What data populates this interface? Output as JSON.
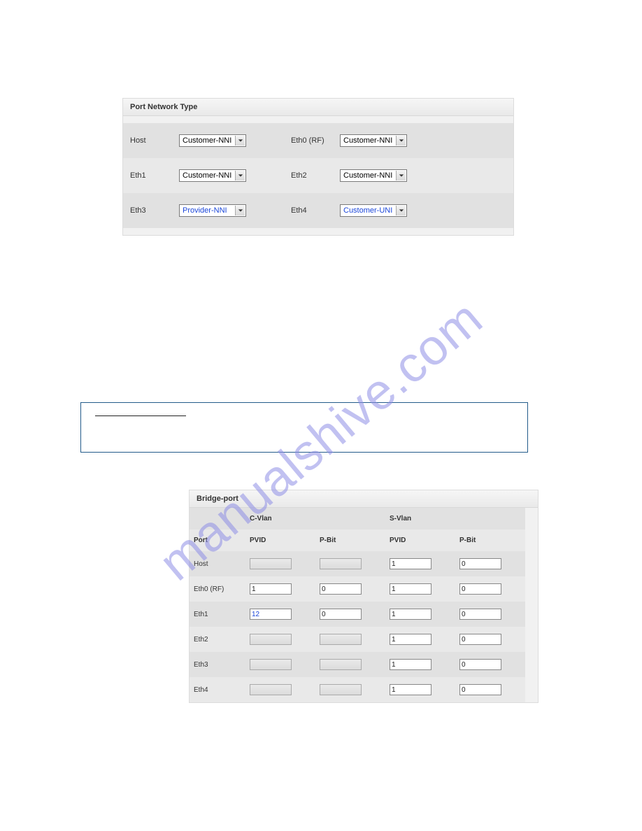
{
  "watermark": {
    "text": "manualshive.com",
    "color": "#8f8fe6"
  },
  "port_network_type": {
    "title": "Port Network Type",
    "rows": [
      {
        "label_a": "Host",
        "value_a": "Customer-NNI",
        "changed_a": false,
        "label_b": "Eth0 (RF)",
        "value_b": "Customer-NNI",
        "changed_b": false
      },
      {
        "label_a": "Eth1",
        "value_a": "Customer-NNI",
        "changed_a": false,
        "label_b": "Eth2",
        "value_b": "Customer-NNI",
        "changed_b": false
      },
      {
        "label_a": "Eth3",
        "value_a": "Provider-NNI",
        "changed_a": true,
        "label_b": "Eth4",
        "value_b": "Customer-UNI",
        "changed_b": true
      }
    ]
  },
  "bridge_port": {
    "title": "Bridge-port",
    "section_headers": {
      "port": "Port",
      "cvlan": "C-Vlan",
      "svlan": "S-Vlan"
    },
    "col_headers": {
      "pvid": "PVID",
      "pbit": "P-Bit"
    },
    "rows": [
      {
        "port": "Host",
        "c_pvid": "",
        "c_pvid_disabled": true,
        "c_pbit": "",
        "c_pbit_disabled": true,
        "s_pvid": "1",
        "s_pbit": "0"
      },
      {
        "port": "Eth0 (RF)",
        "c_pvid": "1",
        "c_pvid_disabled": false,
        "c_pbit": "0",
        "c_pbit_disabled": false,
        "s_pvid": "1",
        "s_pbit": "0"
      },
      {
        "port": "Eth1",
        "c_pvid": "12",
        "c_pvid_changed": true,
        "c_pvid_disabled": false,
        "c_pbit": "0",
        "c_pbit_disabled": false,
        "s_pvid": "1",
        "s_pbit": "0"
      },
      {
        "port": "Eth2",
        "c_pvid": "",
        "c_pvid_disabled": true,
        "c_pbit": "",
        "c_pbit_disabled": true,
        "s_pvid": "1",
        "s_pbit": "0"
      },
      {
        "port": "Eth3",
        "c_pvid": "",
        "c_pvid_disabled": true,
        "c_pbit": "",
        "c_pbit_disabled": true,
        "s_pvid": "1",
        "s_pbit": "0"
      },
      {
        "port": "Eth4",
        "c_pvid": "",
        "c_pvid_disabled": true,
        "c_pbit": "",
        "c_pbit_disabled": true,
        "s_pvid": "1",
        "s_pbit": "0"
      }
    ]
  }
}
